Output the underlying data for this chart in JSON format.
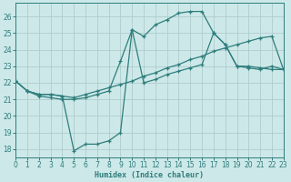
{
  "background_color": "#cde8e8",
  "grid_color": "#b8d8d8",
  "line_color": "#2e7d7d",
  "xlabel": "Humidex (Indice chaleur)",
  "ylim": [
    17.5,
    26.8
  ],
  "xlim": [
    0,
    23
  ],
  "yticks": [
    18,
    19,
    20,
    21,
    22,
    23,
    24,
    25,
    26
  ],
  "xticks": [
    0,
    1,
    2,
    3,
    4,
    5,
    6,
    7,
    8,
    9,
    10,
    11,
    12,
    13,
    14,
    15,
    16,
    17,
    18,
    19,
    20,
    21,
    22,
    23
  ],
  "line1_top": [
    [
      0,
      22.1
    ],
    [
      1,
      21.5
    ],
    [
      2,
      21.3
    ],
    [
      3,
      21.3
    ],
    [
      4,
      21.2
    ],
    [
      5,
      17.9
    ],
    [
      6,
      18.3
    ],
    [
      7,
      18.3
    ],
    [
      8,
      18.5
    ],
    [
      9,
      19.0
    ],
    [
      10,
      25.2
    ],
    [
      11,
      24.8
    ],
    [
      12,
      25.5
    ],
    [
      13,
      25.8
    ],
    [
      14,
      26.2
    ],
    [
      15,
      26.3
    ],
    [
      16,
      26.3
    ],
    [
      17,
      25.0
    ],
    [
      18,
      24.3
    ],
    [
      19,
      23.0
    ],
    [
      20,
      23.0
    ],
    [
      21,
      22.9
    ],
    [
      22,
      22.8
    ],
    [
      23,
      22.8
    ]
  ],
  "line2_diag": [
    [
      0,
      22.1
    ],
    [
      1,
      21.5
    ],
    [
      2,
      21.3
    ],
    [
      3,
      21.3
    ],
    [
      4,
      21.2
    ],
    [
      5,
      21.1
    ],
    [
      6,
      21.3
    ],
    [
      7,
      21.5
    ],
    [
      8,
      21.7
    ],
    [
      9,
      21.9
    ],
    [
      10,
      22.1
    ],
    [
      11,
      22.4
    ],
    [
      12,
      22.6
    ],
    [
      13,
      22.9
    ],
    [
      14,
      23.1
    ],
    [
      15,
      23.4
    ],
    [
      16,
      23.6
    ],
    [
      17,
      23.9
    ],
    [
      18,
      24.1
    ],
    [
      19,
      24.3
    ],
    [
      20,
      24.5
    ],
    [
      21,
      24.7
    ],
    [
      22,
      24.8
    ],
    [
      23,
      22.8
    ]
  ],
  "line3_bottom": [
    [
      0,
      22.1
    ],
    [
      1,
      21.5
    ],
    [
      2,
      21.2
    ],
    [
      3,
      21.1
    ],
    [
      4,
      21.0
    ],
    [
      5,
      21.0
    ],
    [
      6,
      21.1
    ],
    [
      7,
      21.3
    ],
    [
      8,
      21.5
    ],
    [
      9,
      23.3
    ],
    [
      10,
      25.2
    ],
    [
      11,
      22.0
    ],
    [
      12,
      22.2
    ],
    [
      13,
      22.5
    ],
    [
      14,
      22.7
    ],
    [
      15,
      22.9
    ],
    [
      16,
      23.1
    ],
    [
      17,
      25.0
    ],
    [
      18,
      24.3
    ],
    [
      19,
      23.0
    ],
    [
      20,
      22.9
    ],
    [
      21,
      22.8
    ],
    [
      22,
      23.0
    ],
    [
      23,
      22.8
    ]
  ]
}
